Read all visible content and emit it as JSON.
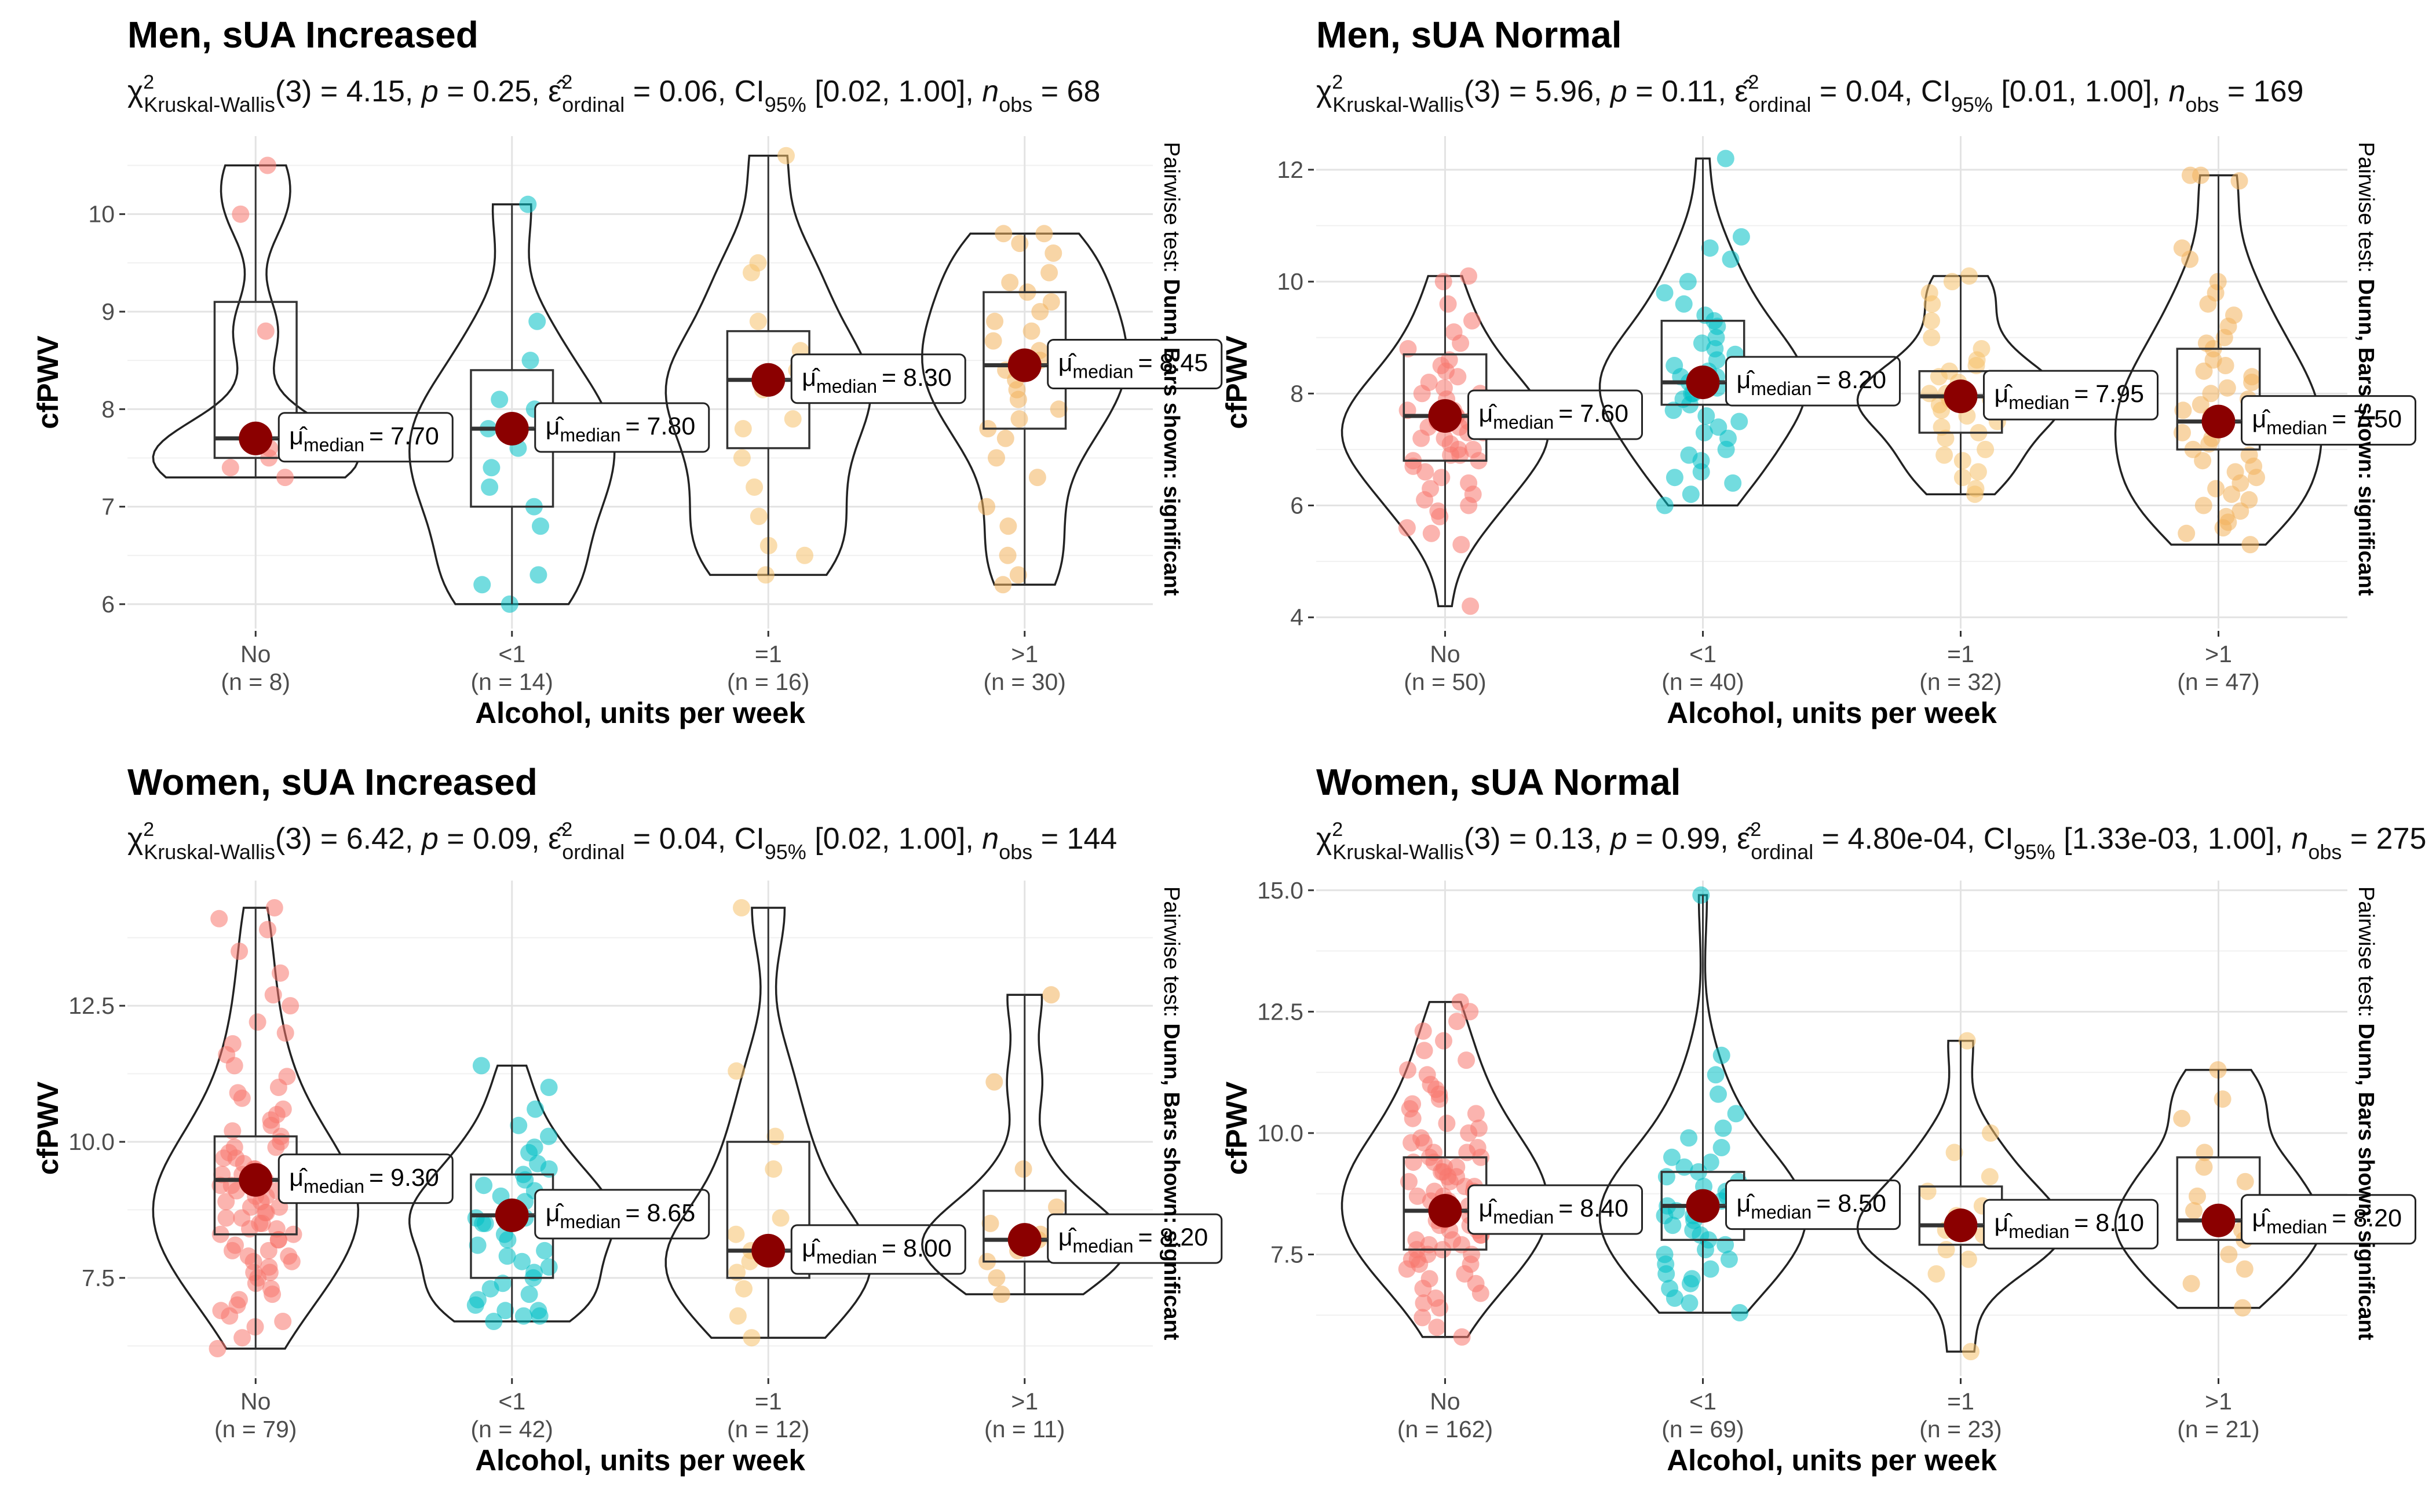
{
  "figure": {
    "colors": {
      "no": "#f8766d",
      "lt1": "#00bfc4",
      "eq1": "#f5c16c",
      "gt1": "#f2b25d",
      "median": "#8b0000"
    },
    "panels": [
      {
        "title": "Men, sUA Increased",
        "subtitle": {
          "chi_stat": "(3) = 4.15, ",
          "p_text": " = 0.25, ",
          "eps_text": " = 0.06, CI",
          "ci_text": " [0.02, 1.00], ",
          "n_text": " = 68"
        },
        "side_caption": {
          "prefix": "Pairwise test: ",
          "bold_test": "Dunn, Bars shown:",
          "mid": " ",
          "bold_shown": "significant"
        }
      },
      {
        "title": "Men, sUA Normal",
        "subtitle": {
          "chi_stat": "(3) = 5.96, ",
          "p_text": " = 0.11, ",
          "eps_text": " = 0.04, CI",
          "ci_text": " [0.01, 1.00], ",
          "n_text": " = 169"
        },
        "side_caption": {
          "prefix": "Pairwise test: ",
          "bold_test": "Dunn, Bars shown:",
          "mid": " ",
          "bold_shown": "significant"
        }
      },
      {
        "title": "Women, sUA Increased",
        "subtitle": {
          "chi_stat": "(3) = 6.42, ",
          "p_text": " = 0.09, ",
          "eps_text": " = 0.04, CI",
          "ci_text": " [0.02, 1.00], ",
          "n_text": " = 144"
        },
        "side_caption": {
          "prefix": "Pairwise test: ",
          "bold_test": "Dunn, Bars shown:",
          "mid": " ",
          "bold_shown": "significant"
        }
      },
      {
        "title": "Women, sUA Normal",
        "subtitle": {
          "chi_stat": "(3) = 0.13, ",
          "p_text": " = 0.99, ",
          "eps_text": " = 4.80e-04, CI",
          "ci_text": " [1.33e-03, 1.00], ",
          "n_text": " = 275"
        },
        "side_caption": {
          "prefix": "Pairwise test: ",
          "bold_test": "Dunn, Bars shown:",
          "mid": " ",
          "bold_shown": "significant"
        }
      }
    ]
  },
  "chart_data": [
    {
      "type": "violin-box",
      "title": "Men, sUA Increased",
      "xlabel": "Alcohol, units per week",
      "ylabel": "cfPWV",
      "categories": [
        "No",
        "<1",
        "=1",
        ">1"
      ],
      "n_labels": [
        "(n = 8)",
        "(n = 14)",
        "(n = 16)",
        "(n = 30)"
      ],
      "yticks": [
        6,
        7,
        8,
        9,
        10
      ],
      "ytick_labels": [
        "6",
        "7",
        "8",
        "9",
        "10"
      ],
      "ylim": [
        5.75,
        10.8
      ],
      "medians": [
        7.7,
        7.8,
        8.3,
        8.45
      ],
      "median_labels": [
        "= 7.70",
        "= 7.80",
        "= 8.30",
        "= 8.45"
      ],
      "box": [
        [
          7.5,
          7.7,
          9.1
        ],
        [
          7.0,
          7.8,
          8.4
        ],
        [
          7.6,
          8.3,
          8.8
        ],
        [
          7.8,
          8.45,
          9.2
        ]
      ],
      "range": [
        [
          7.3,
          10.5
        ],
        [
          6.0,
          10.1
        ],
        [
          6.3,
          10.6
        ],
        [
          6.2,
          9.8
        ]
      ],
      "points": [
        [
          10.5,
          10.0,
          8.8,
          7.7,
          7.6,
          7.5,
          7.4,
          7.3
        ],
        [
          10.1,
          8.9,
          8.5,
          8.1,
          8.0,
          7.8,
          7.6,
          7.4,
          7.2,
          7.0,
          6.8,
          6.3,
          6.2,
          6.0
        ],
        [
          10.6,
          9.5,
          9.4,
          8.9,
          8.6,
          8.4,
          8.3,
          8.2,
          7.9,
          7.8,
          7.5,
          7.2,
          6.9,
          6.6,
          6.5,
          6.3
        ],
        [
          9.8,
          9.8,
          9.7,
          9.6,
          9.4,
          9.3,
          9.2,
          9.1,
          9.0,
          8.9,
          8.8,
          8.7,
          8.6,
          8.5,
          8.5,
          8.4,
          8.3,
          8.2,
          8.1,
          8.0,
          7.9,
          7.8,
          7.7,
          7.5,
          7.3,
          7.0,
          6.8,
          6.5,
          6.3,
          6.2
        ]
      ]
    },
    {
      "type": "violin-box",
      "title": "Men, sUA Normal",
      "xlabel": "Alcohol, units per week",
      "ylabel": "cfPWV",
      "categories": [
        "No",
        "<1",
        "=1",
        ">1"
      ],
      "n_labels": [
        "(n = 50)",
        "(n = 40)",
        "(n = 32)",
        "(n = 47)"
      ],
      "yticks": [
        4,
        6,
        8,
        10,
        12
      ],
      "ytick_labels": [
        "4",
        "6",
        "8",
        "10",
        "12"
      ],
      "ylim": [
        3.8,
        12.6
      ],
      "medians": [
        7.6,
        8.2,
        7.95,
        7.5
      ],
      "median_labels": [
        "= 7.60",
        "= 8.20",
        "= 7.95",
        "= 7.50"
      ],
      "box": [
        [
          6.8,
          7.6,
          8.7
        ],
        [
          7.8,
          8.2,
          9.3
        ],
        [
          7.3,
          7.95,
          8.4
        ],
        [
          7.0,
          7.5,
          8.8
        ]
      ],
      "range": [
        [
          4.2,
          10.1
        ],
        [
          6.0,
          12.2
        ],
        [
          6.2,
          10.1
        ],
        [
          5.3,
          11.9
        ]
      ],
      "points": [
        [
          10.1,
          10.0,
          9.6,
          9.3,
          9.1,
          8.9,
          8.8,
          8.6,
          8.5,
          8.4,
          8.3,
          8.2,
          8.1,
          8.0,
          8.0,
          7.9,
          7.8,
          7.7,
          7.7,
          7.6,
          7.6,
          7.5,
          7.5,
          7.4,
          7.4,
          7.3,
          7.3,
          7.2,
          7.2,
          7.1,
          7.0,
          7.0,
          6.9,
          6.9,
          6.8,
          6.8,
          6.7,
          6.6,
          6.5,
          6.4,
          6.3,
          6.2,
          6.1,
          6.0,
          5.9,
          5.8,
          5.6,
          5.5,
          5.3,
          4.2
        ],
        [
          12.2,
          10.8,
          10.6,
          10.4,
          10.0,
          9.8,
          9.6,
          9.4,
          9.3,
          9.2,
          9.0,
          8.9,
          8.8,
          8.7,
          8.6,
          8.5,
          8.4,
          8.3,
          8.3,
          8.2,
          8.2,
          8.1,
          8.0,
          8.0,
          7.9,
          7.8,
          7.7,
          7.6,
          7.5,
          7.4,
          7.3,
          7.2,
          7.0,
          6.9,
          6.8,
          6.6,
          6.5,
          6.4,
          6.2,
          6.0
        ],
        [
          10.1,
          10.0,
          9.8,
          9.6,
          9.3,
          9.0,
          8.8,
          8.6,
          8.5,
          8.4,
          8.3,
          8.2,
          8.1,
          8.0,
          8.0,
          7.9,
          7.9,
          7.8,
          7.8,
          7.7,
          7.6,
          7.5,
          7.4,
          7.3,
          7.2,
          7.0,
          6.9,
          6.8,
          6.6,
          6.5,
          6.3,
          6.2
        ],
        [
          11.9,
          11.9,
          11.8,
          10.6,
          10.4,
          10.0,
          9.8,
          9.6,
          9.4,
          9.2,
          9.0,
          8.9,
          8.8,
          8.6,
          8.5,
          8.4,
          8.3,
          8.2,
          8.1,
          8.0,
          7.9,
          7.8,
          7.7,
          7.6,
          7.5,
          7.5,
          7.4,
          7.3,
          7.2,
          7.1,
          7.0,
          6.9,
          6.8,
          6.7,
          6.6,
          6.5,
          6.4,
          6.3,
          6.2,
          6.1,
          6.0,
          5.9,
          5.8,
          5.7,
          5.6,
          5.5,
          5.3
        ]
      ]
    },
    {
      "type": "violin-box",
      "title": "Women, sUA Increased",
      "xlabel": "Alcohol, units per week",
      "ylabel": "cfPWV",
      "categories": [
        "No",
        "<1",
        "=1",
        ">1"
      ],
      "n_labels": [
        "(n = 79)",
        "(n = 42)",
        "(n = 12)",
        "(n = 11)"
      ],
      "yticks": [
        7.5,
        10.0,
        12.5
      ],
      "ytick_labels": [
        "7.5",
        "10.0",
        "12.5"
      ],
      "ylim": [
        5.7,
        14.8
      ],
      "medians": [
        9.3,
        8.65,
        8.0,
        8.2
      ],
      "median_labels": [
        "= 9.30",
        "= 8.65",
        "= 8.00",
        "= 8.20"
      ],
      "box": [
        [
          8.3,
          9.3,
          10.1
        ],
        [
          7.5,
          8.65,
          9.4
        ],
        [
          7.5,
          8.0,
          10.0
        ],
        [
          7.8,
          8.2,
          9.1
        ]
      ],
      "range": [
        [
          6.2,
          14.3
        ],
        [
          6.7,
          11.4
        ],
        [
          6.4,
          14.3
        ],
        [
          7.2,
          12.7
        ]
      ],
      "points": [
        [
          14.3,
          14.1,
          13.9,
          13.5,
          13.1,
          12.7,
          12.5,
          12.2,
          12.0,
          11.8,
          11.6,
          11.4,
          11.2,
          11.0,
          10.9,
          10.8,
          10.6,
          10.5,
          10.4,
          10.3,
          10.2,
          10.1,
          10.0,
          9.9,
          9.9,
          9.8,
          9.7,
          9.7,
          9.6,
          9.5,
          9.5,
          9.4,
          9.4,
          9.3,
          9.3,
          9.2,
          9.2,
          9.1,
          9.1,
          9.0,
          9.0,
          8.9,
          8.9,
          8.8,
          8.8,
          8.7,
          8.7,
          8.6,
          8.6,
          8.5,
          8.5,
          8.4,
          8.4,
          8.3,
          8.3,
          8.2,
          8.2,
          8.1,
          8.0,
          8.0,
          7.9,
          7.9,
          7.8,
          7.8,
          7.7,
          7.6,
          7.6,
          7.5,
          7.4,
          7.3,
          7.2,
          7.1,
          7.0,
          6.9,
          6.8,
          6.7,
          6.6,
          6.4,
          6.2
        ],
        [
          11.4,
          11.0,
          10.6,
          10.3,
          10.1,
          9.9,
          9.8,
          9.6,
          9.5,
          9.4,
          9.3,
          9.2,
          9.1,
          9.0,
          8.9,
          8.8,
          8.7,
          8.7,
          8.6,
          8.6,
          8.5,
          8.5,
          8.4,
          8.3,
          8.2,
          8.1,
          8.0,
          7.9,
          7.8,
          7.7,
          7.6,
          7.5,
          7.4,
          7.3,
          7.2,
          7.1,
          7.0,
          6.9,
          6.9,
          6.8,
          6.8,
          6.7
        ],
        [
          14.3,
          11.3,
          10.1,
          9.5,
          8.6,
          8.3,
          8.0,
          7.8,
          7.6,
          7.3,
          6.8,
          6.4
        ],
        [
          12.7,
          11.1,
          9.5,
          8.8,
          8.5,
          8.3,
          8.2,
          8.0,
          7.8,
          7.5,
          7.2
        ]
      ]
    },
    {
      "type": "violin-box",
      "title": "Women, sUA Normal",
      "xlabel": "Alcohol, units per week",
      "ylabel": "cfPWV",
      "categories": [
        "No",
        "<1",
        "=1",
        ">1"
      ],
      "n_labels": [
        "(n = 162)",
        "(n = 69)",
        "(n = 23)",
        "(n = 21)"
      ],
      "yticks": [
        7.5,
        10.0,
        12.5,
        15.0
      ],
      "ytick_labels": [
        "7.5",
        "10.0",
        "12.5",
        "15.0"
      ],
      "ylim": [
        5.0,
        15.2
      ],
      "medians": [
        8.4,
        8.5,
        8.1,
        8.2
      ],
      "median_labels": [
        "= 8.40",
        "= 8.50",
        "= 8.10",
        "= 8.20"
      ],
      "box": [
        [
          7.6,
          8.4,
          9.5
        ],
        [
          7.8,
          8.5,
          9.2
        ],
        [
          7.7,
          8.1,
          8.9
        ],
        [
          7.8,
          8.2,
          9.5
        ]
      ],
      "range": [
        [
          5.8,
          12.7
        ],
        [
          6.3,
          14.9
        ],
        [
          5.5,
          11.9
        ],
        [
          6.4,
          11.3
        ]
      ],
      "points": [
        [
          12.7,
          12.5,
          12.3,
          12.1,
          11.9,
          11.7,
          11.5,
          11.3,
          11.2,
          11.0,
          10.9,
          10.8,
          10.7,
          10.6,
          10.5,
          10.4,
          10.3,
          10.2,
          10.1,
          10.0,
          9.9,
          9.8,
          9.8,
          9.7,
          9.6,
          9.6,
          9.5,
          9.5,
          9.4,
          9.4,
          9.3,
          9.3,
          9.2,
          9.2,
          9.1,
          9.1,
          9.0,
          9.0,
          8.9,
          8.9,
          8.8,
          8.8,
          8.7,
          8.7,
          8.6,
          8.6,
          8.5,
          8.5,
          8.4,
          8.4,
          8.3,
          8.3,
          8.2,
          8.2,
          8.1,
          8.1,
          8.0,
          8.0,
          7.9,
          7.9,
          7.8,
          7.8,
          7.7,
          7.7,
          7.6,
          7.6,
          7.5,
          7.5,
          7.4,
          7.4,
          7.3,
          7.3,
          7.2,
          7.1,
          7.0,
          6.9,
          6.8,
          6.7,
          6.6,
          6.5,
          6.4,
          6.2,
          6.0,
          5.8
        ],
        [
          14.9,
          11.6,
          11.2,
          10.8,
          10.4,
          10.1,
          9.9,
          9.7,
          9.5,
          9.4,
          9.3,
          9.2,
          9.1,
          9.0,
          8.9,
          8.8,
          8.7,
          8.6,
          8.6,
          8.5,
          8.5,
          8.4,
          8.4,
          8.3,
          8.3,
          8.2,
          8.1,
          8.0,
          7.9,
          7.8,
          7.7,
          7.6,
          7.5,
          7.4,
          7.3,
          7.2,
          7.1,
          7.0,
          6.9,
          6.8,
          6.6,
          6.5,
          6.3
        ],
        [
          11.9,
          10.0,
          9.6,
          9.1,
          8.8,
          8.5,
          8.3,
          8.1,
          8.0,
          7.9,
          7.8,
          7.6,
          7.4,
          7.1,
          5.5
        ],
        [
          11.3,
          10.7,
          10.3,
          9.6,
          9.3,
          9.0,
          8.7,
          8.4,
          8.2,
          8.0,
          7.8,
          7.5,
          7.2,
          6.9,
          6.4
        ]
      ]
    }
  ]
}
